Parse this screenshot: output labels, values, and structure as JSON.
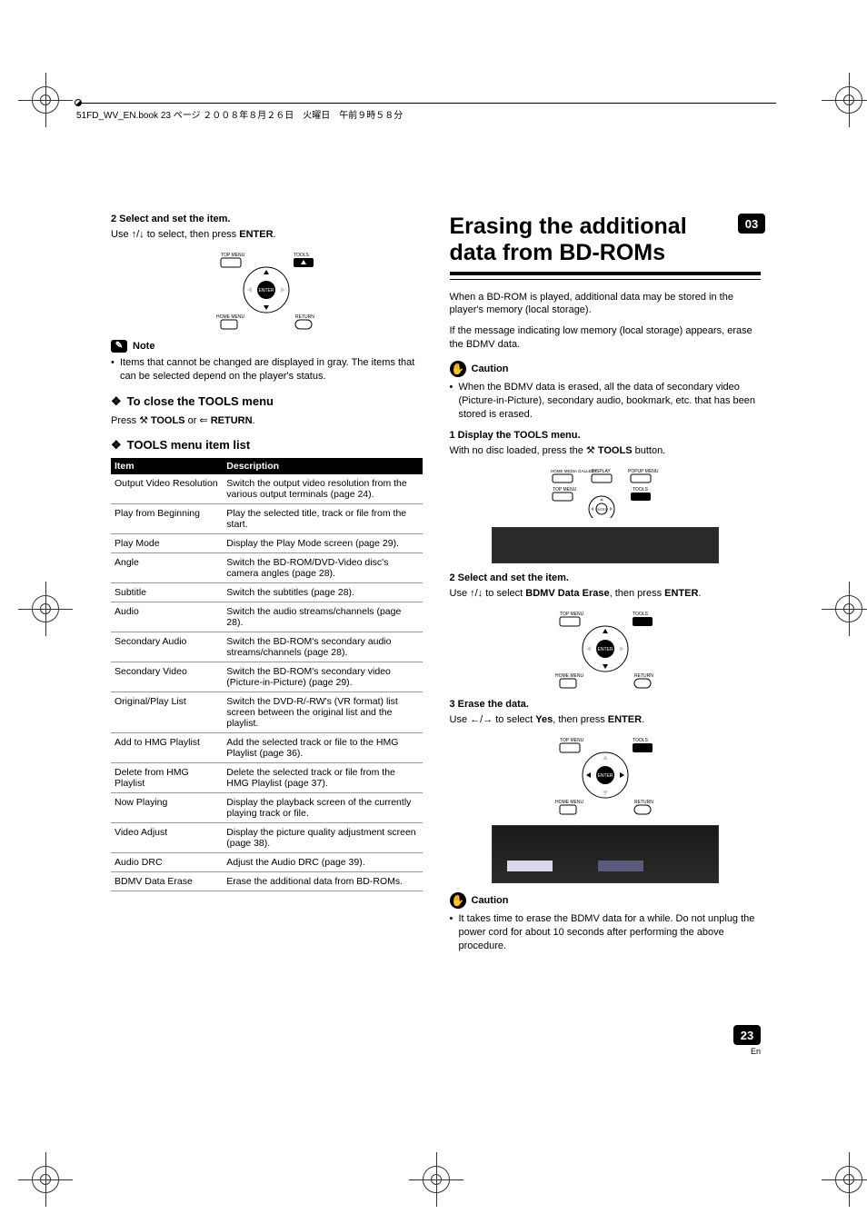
{
  "header_text": "51FD_WV_EN.book  23 ページ  ２００８年８月２６日　火曜日　午前９時５８分",
  "chapter_badge": "03",
  "page_number": "23",
  "page_lang": "En",
  "left": {
    "step2_label": "2   Select and set the item.",
    "step2_body_pre": "Use ",
    "step2_body_mid": " to select, then press ",
    "step2_body_bold": "ENTER",
    "step2_body_post": ".",
    "note_label": "Note",
    "note_bullet": "Items that cannot be changed are displayed in gray. The items that can be selected depend on the player's status.",
    "close_head": "To close the TOOLS menu",
    "close_body_pre": "Press ",
    "close_body_tools": "TOOLS",
    "close_body_or": " or ",
    "close_body_return": "RETURN",
    "close_body_post": ".",
    "list_head": "TOOLS menu item list",
    "table": {
      "col_item": "Item",
      "col_desc": "Description",
      "rows": [
        {
          "item": "Output Video Resolution",
          "desc": "Switch the output video resolution from the various output terminals (page 24)."
        },
        {
          "item": "Play from Beginning",
          "desc": "Play the selected title, track or file from the start."
        },
        {
          "item": "Play Mode",
          "desc": "Display the Play Mode screen (page 29)."
        },
        {
          "item": "Angle",
          "desc": "Switch the BD-ROM/DVD-Video disc's camera angles (page 28)."
        },
        {
          "item": "Subtitle",
          "desc": "Switch the subtitles (page 28)."
        },
        {
          "item": "Audio",
          "desc": "Switch the audio streams/channels (page 28)."
        },
        {
          "item": "Secondary Audio",
          "desc": "Switch the BD-ROM's secondary audio streams/channels (page 28)."
        },
        {
          "item": "Secondary Video",
          "desc": "Switch the BD-ROM's secondary video (Picture-in-Picture) (page 29)."
        },
        {
          "item": "Original/Play List",
          "desc": "Switch the DVD-R/-RW's (VR format) list screen between the original list and the playlist."
        },
        {
          "item": "Add to HMG Playlist",
          "desc": "Add the selected track or file to the HMG Playlist (page 36)."
        },
        {
          "item": "Delete from HMG Playlist",
          "desc": "Delete the selected track or file from the HMG Playlist (page 37)."
        },
        {
          "item": "Now Playing",
          "desc": "Display the playback screen of the currently playing track or file."
        },
        {
          "item": "Video Adjust",
          "desc": "Display the picture quality adjustment screen (page 38)."
        },
        {
          "item": "Audio DRC",
          "desc": "Adjust the Audio DRC (page 39)."
        },
        {
          "item": "BDMV Data Erase",
          "desc": "Erase the additional data from BD-ROMs."
        }
      ]
    }
  },
  "right": {
    "title": "Erasing the additional data from BD-ROMs",
    "intro1": "When a BD-ROM is played, additional data may be stored in the player's memory (local storage).",
    "intro2": "If the message indicating low memory (local storage) appears, erase the BDMV data.",
    "caution_label": "Caution",
    "caution1": "When the BDMV data is erased, all the data of secondary video (Picture-in-Picture), secondary audio, bookmark, etc. that has been stored is erased.",
    "step1_label": "1   Display the TOOLS menu.",
    "step1_body_pre": "With no disc loaded, press the ",
    "step1_body_bold": "TOOLS",
    "step1_body_post": " button.",
    "step2_label": "2   Select and set the item.",
    "step2_body_pre": "Use ",
    "step2_body_mid": " to select ",
    "step2_body_bold1": "BDMV Data Erase",
    "step2_body_then": ", then press ",
    "step2_body_bold2": "ENTER",
    "step2_body_post": ".",
    "step3_label": "3   Erase the data.",
    "step3_body_pre": "Use ",
    "step3_body_mid": " to select ",
    "step3_body_bold1": "Yes",
    "step3_body_then": ", then press ",
    "step3_body_bold2": "ENTER",
    "step3_body_post": ".",
    "caution2": "It takes time to erase the BDMV data for a while. Do not unplug the power cord for about 10 seconds after performing the above procedure."
  },
  "remote_labels": {
    "top_menu": "TOP MENU",
    "tools": "TOOLS",
    "home_menu": "HOME MENU",
    "return": "RETURN",
    "enter": "ENTER",
    "home_media": "HOME MEDIA GALLERY",
    "display": "DISPLAY",
    "popup_menu": "POPUP MENU"
  },
  "colors": {
    "black": "#000000",
    "white": "#ffffff",
    "gray_line": "#999999",
    "dark_box": "#2a2a2a"
  }
}
